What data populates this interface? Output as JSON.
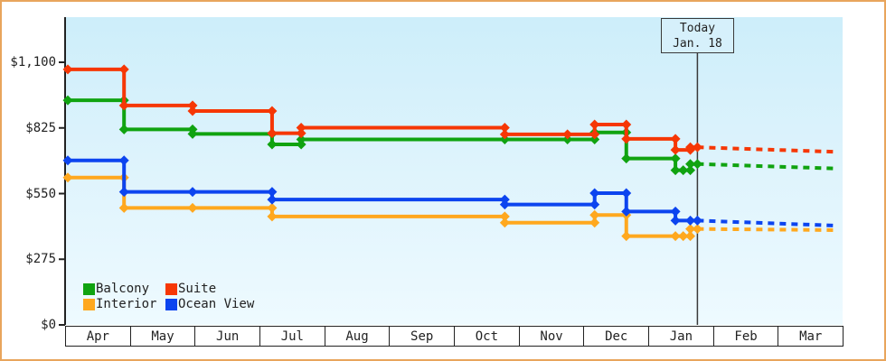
{
  "chart_data": {
    "type": "line",
    "description": "Cabin price history step chart with dotted future projection",
    "y_axis": {
      "ticks": [
        {
          "label": "$0",
          "value": 0
        },
        {
          "label": "$275",
          "value": 275
        },
        {
          "label": "$550",
          "value": 550
        },
        {
          "label": "$825",
          "value": 825
        },
        {
          "label": "$1,100",
          "value": 1100
        }
      ],
      "max": 1100
    },
    "x_axis": {
      "months": [
        "Apr",
        "May",
        "Jun",
        "Jul",
        "Aug",
        "Sep",
        "Oct",
        "Nov",
        "Dec",
        "Jan",
        "Feb",
        "Mar"
      ]
    },
    "today": {
      "line1": "Today",
      "line2": "Jan. 18",
      "x": 9.74
    },
    "projection_end_x": 11.86,
    "series": [
      {
        "name": "Interior",
        "color": "#FFA81E",
        "points": [
          [
            0,
            617
          ],
          [
            0.87,
            490
          ],
          [
            1.93,
            490
          ],
          [
            3.16,
            454
          ],
          [
            6.76,
            428
          ],
          [
            8.15,
            460
          ],
          [
            8.64,
            372
          ],
          [
            9.4,
            372
          ],
          [
            9.52,
            372
          ],
          [
            9.63,
            402
          ],
          [
            9.74,
            402
          ]
        ],
        "projection_value": 397
      },
      {
        "name": "Ocean View",
        "color": "#0C44EF",
        "points": [
          [
            0,
            689
          ],
          [
            0.87,
            557
          ],
          [
            1.93,
            557
          ],
          [
            3.16,
            525
          ],
          [
            6.76,
            504
          ],
          [
            8.15,
            552
          ],
          [
            8.64,
            475
          ],
          [
            9.4,
            437
          ],
          [
            9.63,
            437
          ],
          [
            9.74,
            437
          ]
        ],
        "projection_value": 416
      },
      {
        "name": "Balcony",
        "color": "#10A310",
        "points": [
          [
            0,
            941
          ],
          [
            0.87,
            819
          ],
          [
            1.93,
            800
          ],
          [
            3.16,
            756
          ],
          [
            3.61,
            777
          ],
          [
            6.76,
            777
          ],
          [
            7.73,
            777
          ],
          [
            8.15,
            806
          ],
          [
            8.64,
            697
          ],
          [
            9.4,
            648
          ],
          [
            9.52,
            648
          ],
          [
            9.63,
            674
          ],
          [
            9.74,
            674
          ]
        ],
        "projection_value": 655
      },
      {
        "name": "Suite",
        "color": "#F63705",
        "points": [
          [
            0,
            1070
          ],
          [
            0.87,
            919
          ],
          [
            1.93,
            896
          ],
          [
            3.16,
            803
          ],
          [
            3.61,
            826
          ],
          [
            6.76,
            798
          ],
          [
            7.73,
            798
          ],
          [
            8.15,
            839
          ],
          [
            8.64,
            779
          ],
          [
            9.4,
            733
          ],
          [
            9.63,
            744
          ],
          [
            9.74,
            744
          ]
        ],
        "projection_value": 725
      }
    ],
    "legend": {
      "order": [
        "Balcony",
        "Suite",
        "Interior",
        "Ocean View"
      ]
    },
    "colors": {
      "frame_border": "#E8A55C",
      "axis": "#222222",
      "today_line": "#3a3a3a",
      "plot_bg_top": "#cdeefa",
      "plot_bg_bottom": "#eefaff"
    }
  }
}
